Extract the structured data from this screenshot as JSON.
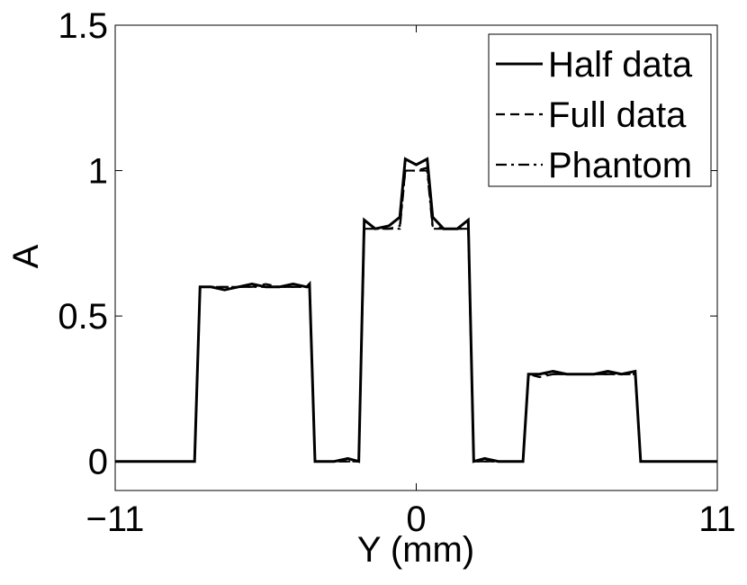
{
  "chart_data": {
    "type": "line",
    "x": [
      -11,
      -9,
      -8.1,
      -7.9,
      -7.5,
      -7,
      -6.5,
      -6,
      -5.5,
      -5,
      -4.5,
      -4,
      -3.9,
      -3.7,
      -3,
      -2.5,
      -2.1,
      -1.9,
      -1.5,
      -1,
      -0.6,
      -0.4,
      0,
      0.4,
      0.6,
      1,
      1.5,
      1.9,
      2.1,
      2.5,
      3,
      3.5,
      3.9,
      4.1,
      4.5,
      5,
      5.5,
      6,
      6.5,
      7,
      7.5,
      8,
      8.2,
      9,
      11
    ],
    "series": [
      {
        "name": "Half data",
        "color": "#000000",
        "dash": "solid",
        "values": [
          0,
          0,
          0,
          0.6,
          0.6,
          0.59,
          0.6,
          0.61,
          0.6,
          0.6,
          0.61,
          0.6,
          0.61,
          0,
          0,
          0.01,
          0,
          0.83,
          0.8,
          0.81,
          0.84,
          1.04,
          1.02,
          1.04,
          0.84,
          0.8,
          0.8,
          0.83,
          0,
          0.01,
          0,
          0,
          0,
          0.3,
          0.3,
          0.31,
          0.3,
          0.3,
          0.3,
          0.31,
          0.3,
          0.31,
          0,
          0,
          0
        ]
      },
      {
        "name": "Full data",
        "color": "#000000",
        "dash": "dashed",
        "values": [
          0,
          0,
          0,
          0.6,
          0.6,
          0.6,
          0.6,
          0.6,
          0.61,
          0.6,
          0.6,
          0.6,
          0.6,
          0,
          0,
          0,
          0,
          0.8,
          0.8,
          0.8,
          0.81,
          1.0,
          1.0,
          1.01,
          0.81,
          0.8,
          0.8,
          0.8,
          0,
          0,
          0,
          0,
          0,
          0.3,
          0.29,
          0.3,
          0.3,
          0.3,
          0.3,
          0.3,
          0.3,
          0.3,
          0,
          0,
          0
        ]
      },
      {
        "name": "Phantom",
        "color": "#000000",
        "dash": "dashdot",
        "values": [
          0,
          0,
          0,
          0.6,
          0.6,
          0.6,
          0.6,
          0.6,
          0.6,
          0.6,
          0.6,
          0.6,
          0.6,
          0,
          0,
          0,
          0,
          0.8,
          0.8,
          0.8,
          0.8,
          1,
          1,
          1,
          0.8,
          0.8,
          0.8,
          0.8,
          0,
          0,
          0,
          0,
          0,
          0.3,
          0.3,
          0.3,
          0.3,
          0.3,
          0.3,
          0.3,
          0.3,
          0.3,
          0,
          0,
          0
        ]
      }
    ],
    "xlabel": "Y (mm)",
    "ylabel": "A",
    "xlim": [
      -11,
      11
    ],
    "ylim": [
      -0.1,
      1.5
    ],
    "xticks": [
      {
        "value": -11,
        "label": "−11"
      },
      0,
      11
    ],
    "yticks": [
      0,
      0.5,
      1,
      1.5
    ],
    "grid": false,
    "legend": "upper right"
  }
}
